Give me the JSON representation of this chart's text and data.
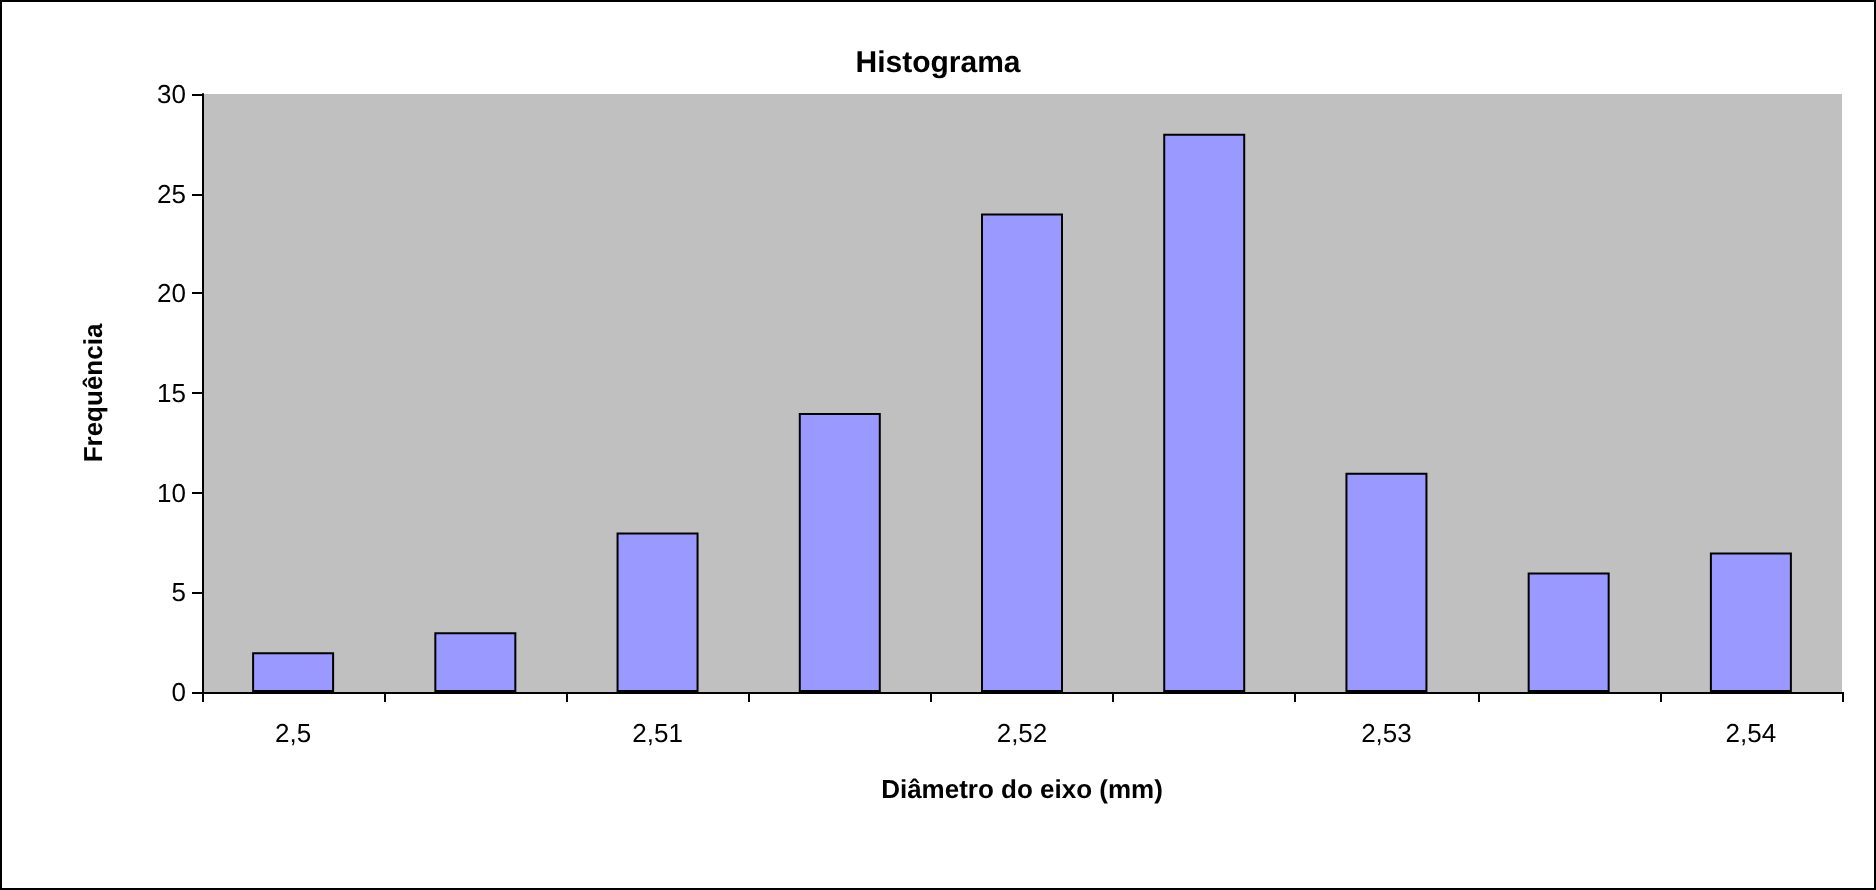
{
  "chart_data": {
    "type": "bar",
    "title": "Histograma",
    "xlabel": "Diâmetro do eixo (mm)",
    "ylabel": "Frequência",
    "categories": [
      "2,5",
      null,
      "2,51",
      null,
      "2,52",
      null,
      "2,53",
      null,
      "2,54"
    ],
    "values": [
      2,
      3,
      8,
      14,
      24,
      28,
      11,
      6,
      7
    ],
    "color": "#9999ff",
    "ylim": [
      0,
      30
    ],
    "yticks": [
      0,
      5,
      10,
      15,
      20,
      25,
      30
    ],
    "grid": false
  }
}
